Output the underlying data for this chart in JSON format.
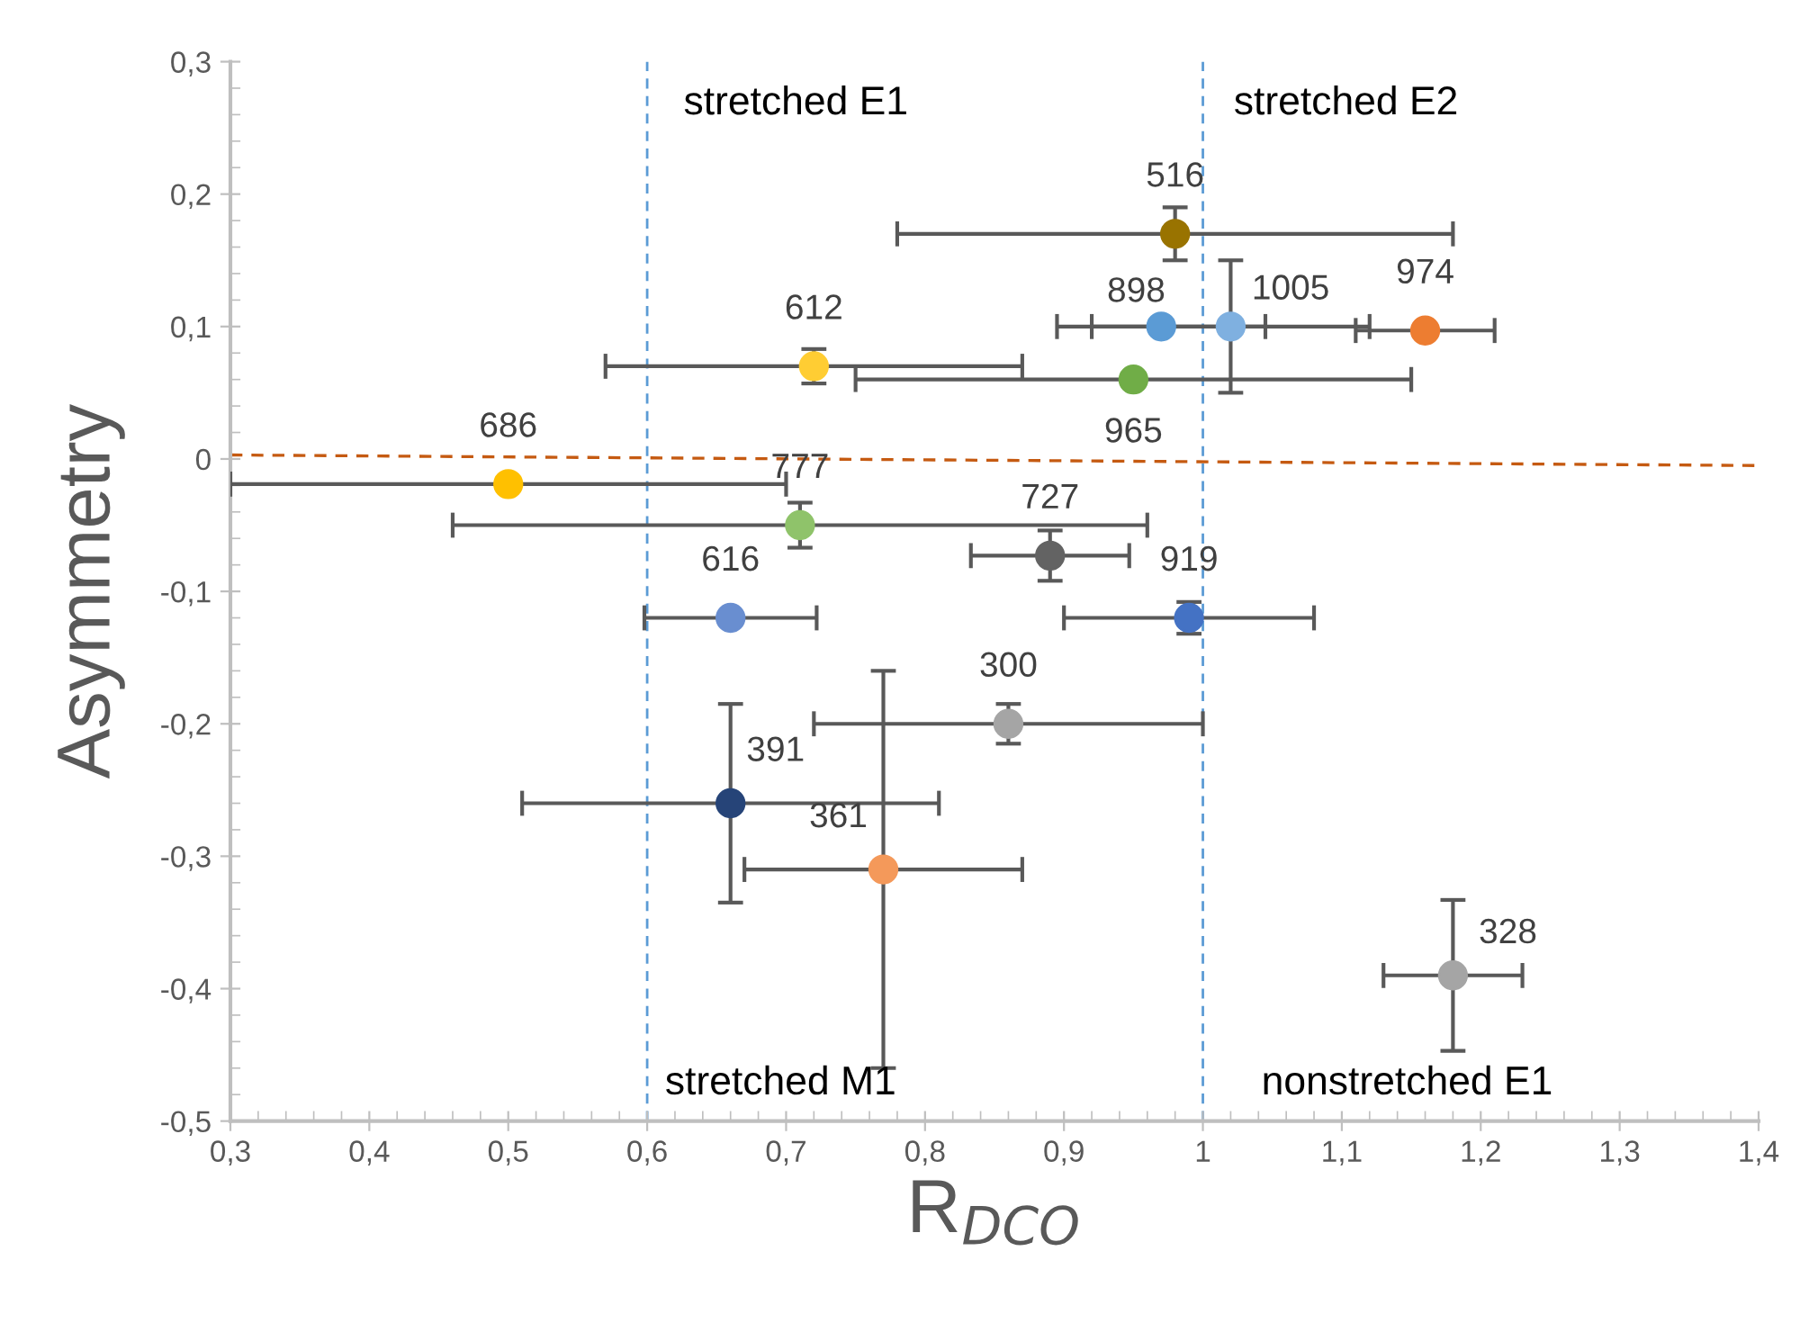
{
  "chart_data": {
    "type": "scatter",
    "xlabel": "R$_{DCO}$",
    "ylabel": "Asymmetry",
    "xlim": [
      0.3,
      1.4
    ],
    "ylim": [
      -0.5,
      0.3
    ],
    "xticks": [
      {
        "value": 0.3,
        "label": "0,3"
      },
      {
        "value": 0.4,
        "label": "0,4"
      },
      {
        "value": 0.5,
        "label": "0,5"
      },
      {
        "value": 0.6,
        "label": "0,6"
      },
      {
        "value": 0.7,
        "label": "0,7"
      },
      {
        "value": 0.8,
        "label": "0,8"
      },
      {
        "value": 0.9,
        "label": "0,9"
      },
      {
        "value": 1.0,
        "label": "1"
      },
      {
        "value": 1.1,
        "label": "1,1"
      },
      {
        "value": 1.2,
        "label": "1,2"
      },
      {
        "value": 1.3,
        "label": "1,3"
      },
      {
        "value": 1.4,
        "label": "1,4"
      }
    ],
    "yticks": [
      {
        "value": -0.5,
        "label": "-0,5"
      },
      {
        "value": -0.4,
        "label": "-0,4"
      },
      {
        "value": -0.3,
        "label": "-0,3"
      },
      {
        "value": -0.2,
        "label": "-0,2"
      },
      {
        "value": -0.1,
        "label": "-0,1"
      },
      {
        "value": 0,
        "label": "0"
      },
      {
        "value": 0.1,
        "label": "0,1"
      },
      {
        "value": 0.2,
        "label": "0,2"
      },
      {
        "value": 0.3,
        "label": "0,3"
      }
    ],
    "grid": false,
    "legend": false,
    "marker": "circle",
    "series": [
      {
        "name": "516",
        "color": "#997300",
        "x": [
          0.98
        ],
        "values": [
          0.17
        ],
        "errors": [
          0.02
        ],
        "xerrors": [
          0.2
        ]
      },
      {
        "name": "898",
        "color": "#5b9bd5",
        "x": [
          0.97
        ],
        "values": [
          0.1
        ],
        "xerrors": [
          0.075
        ]
      },
      {
        "name": "1005",
        "color": "#7fb0e0",
        "x": [
          1.02
        ],
        "values": [
          0.1
        ],
        "errors": [
          0.05
        ],
        "xerrors": [
          0.1
        ]
      },
      {
        "name": "974",
        "color": "#ed7d31",
        "x": [
          1.16
        ],
        "values": [
          0.097
        ],
        "xerrors": [
          0.05
        ]
      },
      {
        "name": "965",
        "color": "#70ad47",
        "x": [
          0.95
        ],
        "values": [
          0.06
        ],
        "xerrors": [
          0.2
        ]
      },
      {
        "name": "612",
        "color": "#ffcd33",
        "x": [
          0.72
        ],
        "values": [
          0.07
        ],
        "errors": [
          0.013
        ],
        "xerrors": [
          0.15
        ]
      },
      {
        "name": "686",
        "color": "#ffc000",
        "x": [
          0.5
        ],
        "values": [
          -0.019
        ],
        "xerrors": [
          0.2
        ]
      },
      {
        "name": "777",
        "color": "#8fc36a",
        "x": [
          0.71
        ],
        "values": [
          -0.05
        ],
        "errors": [
          0.017
        ],
        "xerrors": [
          0.25
        ]
      },
      {
        "name": "727",
        "color": "#636363",
        "x": [
          0.89
        ],
        "values": [
          -0.073
        ],
        "errors": [
          0.019
        ],
        "xerrors": [
          0.057
        ]
      },
      {
        "name": "616",
        "color": "#698ed0",
        "x": [
          0.66
        ],
        "values": [
          -0.12
        ],
        "xerrors": [
          0.062
        ]
      },
      {
        "name": "919",
        "color": "#4472c4",
        "x": [
          0.99
        ],
        "values": [
          -0.12
        ],
        "errors": [
          0.012
        ],
        "xerrors": [
          0.09
        ]
      },
      {
        "name": "300",
        "color": "#a5a5a5",
        "x": [
          0.86
        ],
        "values": [
          -0.2
        ],
        "errors": [
          0.015
        ],
        "xerrors": [
          0.14
        ]
      },
      {
        "name": "391",
        "color": "#264478",
        "x": [
          0.66
        ],
        "values": [
          -0.26
        ],
        "errors": [
          0.075
        ],
        "xerrors": [
          0.15
        ]
      },
      {
        "name": "361",
        "color": "#f4995a",
        "x": [
          0.77
        ],
        "values": [
          -0.31
        ],
        "errors": [
          0.15
        ],
        "xerrors": [
          0.1
        ]
      },
      {
        "name": "328",
        "color": "#a5a5a5",
        "x": [
          1.18
        ],
        "values": [
          -0.39
        ],
        "errors": [
          0.057
        ],
        "xerrors": [
          0.05
        ]
      },
      {
        "type": "line",
        "color": "#c55a11",
        "line_style": "dashed",
        "marker": "none",
        "x": [
          0.3,
          1.4
        ],
        "values": [
          0.003,
          -0.005
        ]
      }
    ],
    "ref_lines": [
      {
        "axis": "x",
        "value": 0.6,
        "color": "#5b9bd5",
        "line_style": "dashed"
      },
      {
        "axis": "x",
        "value": 1.0,
        "color": "#5b9bd5",
        "line_style": "dashed"
      }
    ],
    "annotations": [
      "stretched E1",
      "stretched E2",
      "stretched M1",
      "nonstretched E1"
    ]
  }
}
